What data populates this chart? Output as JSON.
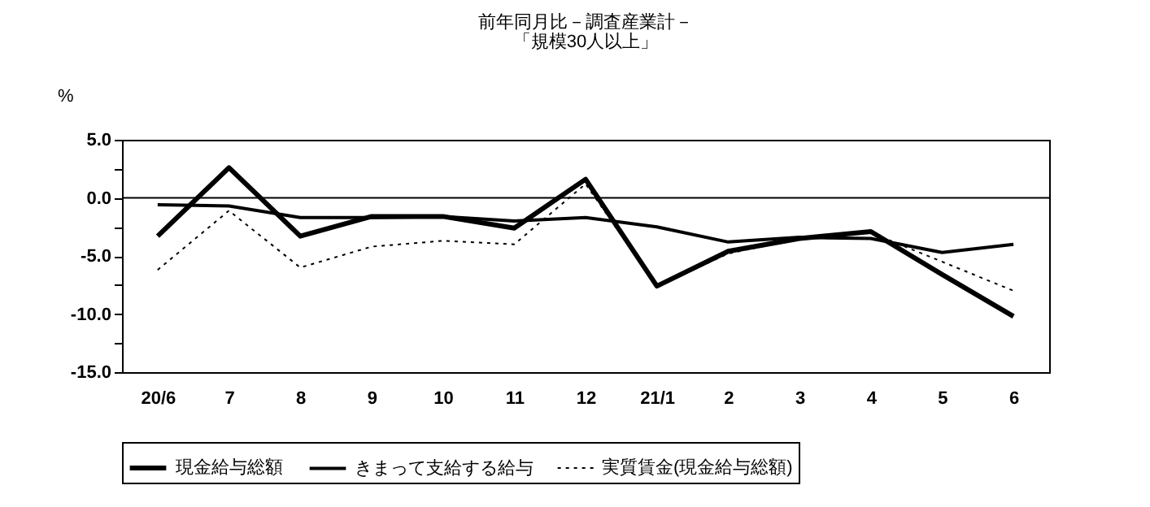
{
  "chart_data": {
    "type": "line",
    "title": "前年同月比－調査産業計－",
    "subtitle": "「規模30人以上」",
    "ylabel": "%",
    "categories": [
      "20/6",
      "7",
      "8",
      "9",
      "10",
      "11",
      "12",
      "21/1",
      "2",
      "3",
      "4",
      "5",
      "6"
    ],
    "series": [
      {
        "name": "現金給与総額",
        "color": "#000000",
        "line_style": "solid",
        "values": [
          -3.3,
          2.6,
          -3.3,
          -1.6,
          -1.6,
          -2.6,
          1.6,
          -7.6,
          -4.6,
          -3.5,
          -2.9,
          -6.6,
          -10.2
        ]
      },
      {
        "name": "きまって支給する給与",
        "color": "#000000",
        "line_style": "solid",
        "values": [
          -0.6,
          -0.7,
          -1.7,
          -1.7,
          -1.6,
          -2.0,
          -1.7,
          -2.5,
          -3.8,
          -3.4,
          -3.5,
          -4.7,
          -4.0
        ]
      },
      {
        "name": "実質賃金(現金給与総額)",
        "color": "#000000",
        "line_style": "dotted",
        "values": [
          -6.2,
          -1.1,
          -6.0,
          -4.2,
          -3.7,
          -4.0,
          1.2,
          -7.6,
          -4.8,
          -3.5,
          -3.0,
          -5.5,
          -8.0
        ]
      }
    ],
    "ylim": [
      -15,
      5
    ],
    "yticks": [
      {
        "value": -15,
        "label": "-15.0"
      },
      {
        "value": -12.5,
        "label": null
      },
      {
        "value": -10,
        "label": "-10.0"
      },
      {
        "value": -7.5,
        "label": null
      },
      {
        "value": -5,
        "label": "-5.0"
      },
      {
        "value": -2.5,
        "label": null
      },
      {
        "value": 0,
        "label": "0.0"
      },
      {
        "value": 2.5,
        "label": null
      },
      {
        "value": 5,
        "label": "5.0"
      }
    ],
    "ref_lines": [
      {
        "axis": "y",
        "value": 0,
        "color": "#000000"
      }
    ],
    "grid": false,
    "legend": "bottom",
    "marker": "none"
  }
}
